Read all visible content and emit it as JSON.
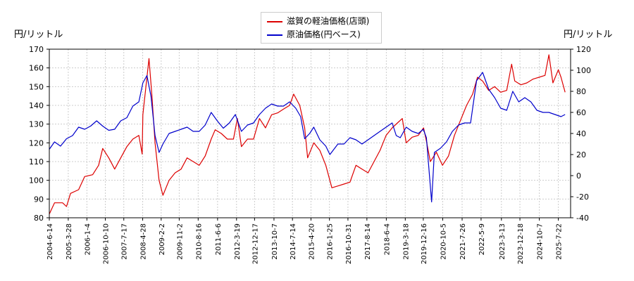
{
  "chart_data": {
    "type": "line",
    "title": "",
    "ylabel_left": "円/リットル",
    "ylabel_right": "円/リットル",
    "grid": true,
    "legend_placement": "top-center",
    "x_ticks": [
      "2004-6-14",
      "2005-3-28",
      "2006-1-4",
      "2006-10-10",
      "2007-7-17",
      "2008-4-28",
      "2009-2-2",
      "2009-11-2",
      "2010-8-16",
      "2011-6-6",
      "2012-3-19",
      "2012-12-17",
      "2013-10-7",
      "2014-7-14",
      "2015-4-20",
      "2016-1-25",
      "2016-10-31",
      "2017-8-14",
      "2018-6-4",
      "2019-3-18",
      "2019-12-16",
      "2020-10-5",
      "2021-7-26",
      "2022-5-9",
      "2023-3-13",
      "2023-12-18",
      "2024-10-7",
      "2025-7-22"
    ],
    "y_left": {
      "min": 80,
      "max": 170,
      "ticks": [
        80,
        90,
        100,
        110,
        120,
        130,
        140,
        150,
        160,
        170
      ]
    },
    "y_right": {
      "min": -40,
      "max": 120,
      "ticks": [
        -40,
        -20,
        0,
        20,
        40,
        60,
        80,
        100,
        120
      ]
    },
    "series": [
      {
        "name": "滋賀の軽油価格(店頭)",
        "color": "#dd0000",
        "axis": "left",
        "points": [
          [
            "2004-6-14",
            82
          ],
          [
            "2004-9-1",
            88
          ],
          [
            "2005-1-1",
            88
          ],
          [
            "2005-3-1",
            86
          ],
          [
            "2005-5-1",
            93
          ],
          [
            "2005-9-1",
            95
          ],
          [
            "2005-12-1",
            102
          ],
          [
            "2006-4-1",
            103
          ],
          [
            "2006-7-1",
            108
          ],
          [
            "2006-9-1",
            117
          ],
          [
            "2006-12-1",
            112
          ],
          [
            "2007-3-1",
            106
          ],
          [
            "2007-6-1",
            112
          ],
          [
            "2007-9-1",
            118
          ],
          [
            "2007-12-1",
            122
          ],
          [
            "2008-3-1",
            124
          ],
          [
            "2008-4-20",
            114
          ],
          [
            "2008-5-1",
            135
          ],
          [
            "2008-7-1",
            155
          ],
          [
            "2008-8-1",
            165
          ],
          [
            "2008-9-15",
            145
          ],
          [
            "2008-11-1",
            120
          ],
          [
            "2009-1-1",
            100
          ],
          [
            "2009-3-1",
            92
          ],
          [
            "2009-6-1",
            100
          ],
          [
            "2009-9-1",
            104
          ],
          [
            "2009-12-1",
            106
          ],
          [
            "2010-3-1",
            112
          ],
          [
            "2010-6-1",
            110
          ],
          [
            "2010-9-1",
            108
          ],
          [
            "2010-12-1",
            113
          ],
          [
            "2011-3-1",
            122
          ],
          [
            "2011-5-1",
            127
          ],
          [
            "2011-8-1",
            125
          ],
          [
            "2011-11-1",
            122
          ],
          [
            "2012-2-1",
            122
          ],
          [
            "2012-4-1",
            133
          ],
          [
            "2012-6-1",
            118
          ],
          [
            "2012-9-1",
            122
          ],
          [
            "2012-12-1",
            122
          ],
          [
            "2013-3-1",
            133
          ],
          [
            "2013-6-1",
            128
          ],
          [
            "2013-9-1",
            135
          ],
          [
            "2013-12-1",
            136
          ],
          [
            "2014-3-1",
            138
          ],
          [
            "2014-6-1",
            140
          ],
          [
            "2014-8-1",
            146
          ],
          [
            "2014-11-1",
            140
          ],
          [
            "2015-1-15",
            128
          ],
          [
            "2015-3-1",
            112
          ],
          [
            "2015-6-1",
            120
          ],
          [
            "2015-9-1",
            116
          ],
          [
            "2015-12-1",
            108
          ],
          [
            "2016-3-1",
            96
          ],
          [
            "2016-6-1",
            97
          ],
          [
            "2016-9-1",
            98
          ],
          [
            "2016-12-1",
            99
          ],
          [
            "2017-3-1",
            108
          ],
          [
            "2017-6-1",
            106
          ],
          [
            "2017-9-1",
            104
          ],
          [
            "2017-12-1",
            110
          ],
          [
            "2018-3-1",
            116
          ],
          [
            "2018-6-1",
            124
          ],
          [
            "2018-9-1",
            128
          ],
          [
            "2018-12-1",
            131
          ],
          [
            "2019-2-1",
            133
          ],
          [
            "2019-4-1",
            120
          ],
          [
            "2019-7-1",
            123
          ],
          [
            "2019-10-1",
            124
          ],
          [
            "2019-12-20",
            128
          ],
          [
            "2020-2-1",
            121
          ],
          [
            "2020-4-1",
            110
          ],
          [
            "2020-7-1",
            115
          ],
          [
            "2020-10-1",
            108
          ],
          [
            "2021-1-1",
            113
          ],
          [
            "2021-4-1",
            124
          ],
          [
            "2021-7-1",
            132
          ],
          [
            "2021-10-1",
            140
          ],
          [
            "2022-1-1",
            146
          ],
          [
            "2022-3-15",
            155
          ],
          [
            "2022-6-1",
            153
          ],
          [
            "2022-9-1",
            148
          ],
          [
            "2022-12-1",
            150
          ],
          [
            "2023-3-1",
            147
          ],
          [
            "2023-6-1",
            148
          ],
          [
            "2023-8-15",
            162
          ],
          [
            "2023-10-1",
            153
          ],
          [
            "2024-1-1",
            151
          ],
          [
            "2024-4-1",
            152
          ],
          [
            "2024-7-1",
            154
          ],
          [
            "2024-10-1",
            155
          ],
          [
            "2025-1-1",
            156
          ],
          [
            "2025-3-1",
            167
          ],
          [
            "2025-5-1",
            152
          ],
          [
            "2025-7-22",
            159
          ],
          [
            "2025-9-1",
            155
          ],
          [
            "2025-11-1",
            147
          ]
        ]
      },
      {
        "name": "原油価格(円ベース)",
        "color": "#0000cc",
        "axis": "right",
        "points": [
          [
            "2004-6-14",
            25
          ],
          [
            "2004-9-1",
            32
          ],
          [
            "2004-12-1",
            28
          ],
          [
            "2005-3-1",
            35
          ],
          [
            "2005-6-1",
            38
          ],
          [
            "2005-9-1",
            46
          ],
          [
            "2005-12-1",
            44
          ],
          [
            "2006-3-1",
            47
          ],
          [
            "2006-6-1",
            52
          ],
          [
            "2006-9-1",
            47
          ],
          [
            "2006-12-1",
            43
          ],
          [
            "2007-3-1",
            44
          ],
          [
            "2007-6-1",
            52
          ],
          [
            "2007-9-1",
            55
          ],
          [
            "2007-12-1",
            66
          ],
          [
            "2008-3-1",
            70
          ],
          [
            "2008-5-1",
            88
          ],
          [
            "2008-7-1",
            95
          ],
          [
            "2008-9-1",
            75
          ],
          [
            "2008-11-1",
            38
          ],
          [
            "2009-1-1",
            22
          ],
          [
            "2009-3-1",
            30
          ],
          [
            "2009-6-1",
            40
          ],
          [
            "2009-9-1",
            42
          ],
          [
            "2009-12-1",
            44
          ],
          [
            "2010-3-1",
            46
          ],
          [
            "2010-6-1",
            42
          ],
          [
            "2010-9-1",
            42
          ],
          [
            "2010-12-1",
            48
          ],
          [
            "2011-3-1",
            60
          ],
          [
            "2011-6-1",
            52
          ],
          [
            "2011-9-1",
            45
          ],
          [
            "2011-12-1",
            50
          ],
          [
            "2012-3-1",
            58
          ],
          [
            "2012-6-1",
            42
          ],
          [
            "2012-9-1",
            48
          ],
          [
            "2012-12-1",
            50
          ],
          [
            "2013-3-1",
            58
          ],
          [
            "2013-6-1",
            64
          ],
          [
            "2013-9-1",
            68
          ],
          [
            "2013-12-1",
            66
          ],
          [
            "2014-3-1",
            66
          ],
          [
            "2014-6-1",
            70
          ],
          [
            "2014-9-1",
            64
          ],
          [
            "2014-11-15",
            56
          ],
          [
            "2015-1-15",
            35
          ],
          [
            "2015-4-1",
            40
          ],
          [
            "2015-6-1",
            46
          ],
          [
            "2015-9-1",
            34
          ],
          [
            "2015-12-1",
            28
          ],
          [
            "2016-2-1",
            20
          ],
          [
            "2016-6-1",
            30
          ],
          [
            "2016-9-1",
            30
          ],
          [
            "2016-12-1",
            36
          ],
          [
            "2017-3-1",
            34
          ],
          [
            "2017-6-1",
            30
          ],
          [
            "2017-9-1",
            34
          ],
          [
            "2017-12-1",
            38
          ],
          [
            "2018-3-1",
            42
          ],
          [
            "2018-6-1",
            46
          ],
          [
            "2018-9-1",
            50
          ],
          [
            "2018-11-1",
            38
          ],
          [
            "2019-1-1",
            36
          ],
          [
            "2019-4-1",
            46
          ],
          [
            "2019-7-1",
            42
          ],
          [
            "2019-10-1",
            40
          ],
          [
            "2019-12-16",
            44
          ],
          [
            "2020-2-1",
            36
          ],
          [
            "2020-4-20",
            -25
          ],
          [
            "2020-6-1",
            22
          ],
          [
            "2020-9-1",
            26
          ],
          [
            "2020-12-1",
            32
          ],
          [
            "2021-3-1",
            42
          ],
          [
            "2021-6-1",
            48
          ],
          [
            "2021-9-1",
            50
          ],
          [
            "2021-12-1",
            50
          ],
          [
            "2022-3-1",
            90
          ],
          [
            "2022-6-1",
            98
          ],
          [
            "2022-9-1",
            82
          ],
          [
            "2022-12-1",
            74
          ],
          [
            "2023-3-1",
            64
          ],
          [
            "2023-6-1",
            62
          ],
          [
            "2023-9-1",
            80
          ],
          [
            "2023-12-1",
            70
          ],
          [
            "2024-3-1",
            74
          ],
          [
            "2024-6-1",
            70
          ],
          [
            "2024-9-1",
            62
          ],
          [
            "2024-12-1",
            60
          ],
          [
            "2025-3-1",
            60
          ],
          [
            "2025-6-1",
            58
          ],
          [
            "2025-9-1",
            56
          ],
          [
            "2025-11-1",
            58
          ]
        ]
      }
    ]
  }
}
